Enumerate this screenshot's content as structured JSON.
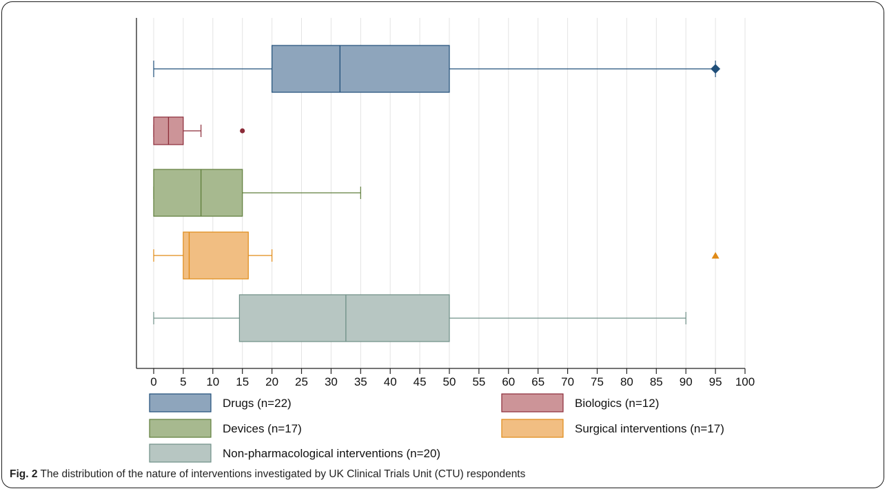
{
  "chart_data": {
    "type": "boxplot",
    "orientation": "horizontal",
    "xlim": [
      0,
      100
    ],
    "x_ticks": [
      0,
      5,
      10,
      15,
      20,
      25,
      30,
      35,
      40,
      45,
      50,
      55,
      60,
      65,
      70,
      75,
      80,
      85,
      90,
      95,
      100
    ],
    "grid": "vertical",
    "legend_position": "bottom",
    "series": [
      {
        "name": "Drugs (n=22)",
        "min": 0,
        "q1": 20,
        "median": 31.5,
        "q3": 50,
        "max": 95,
        "outliers": [
          95
        ],
        "outlier_marker": "diamond",
        "fill": "#8ea5bc",
        "stroke": "#1f4e79"
      },
      {
        "name": "Biologics (n=12)",
        "min": 0,
        "q1": 0,
        "median": 2.5,
        "q3": 5,
        "max": 8,
        "outliers": [
          15
        ],
        "outlier_marker": "circle",
        "fill": "#cc9498",
        "stroke": "#8b2b38"
      },
      {
        "name": "Devices (n=17)",
        "min": 0,
        "q1": 0,
        "median": 8,
        "q3": 15,
        "max": 35,
        "outliers": [],
        "outlier_marker": "square",
        "fill": "#a7b98f",
        "stroke": "#5e7d3a"
      },
      {
        "name": "Surgical interventions (n=17)",
        "min": 0,
        "q1": 5,
        "median": 6,
        "q3": 16,
        "max": 20,
        "outliers": [
          95
        ],
        "outlier_marker": "triangle",
        "fill": "#f1be82",
        "stroke": "#e08a16"
      },
      {
        "name": "Non-pharmacological interventions (n=20)",
        "min": 0,
        "q1": 14.5,
        "median": 32.5,
        "q3": 50,
        "max": 90,
        "outliers": [],
        "outlier_marker": "x",
        "fill": "#b7c6c2",
        "stroke": "#6e8f87"
      }
    ]
  },
  "caption": {
    "fig_label": "Fig. 2",
    "text": " The distribution of the nature of interventions investigated by UK Clinical Trials Unit (CTU) respondents"
  }
}
